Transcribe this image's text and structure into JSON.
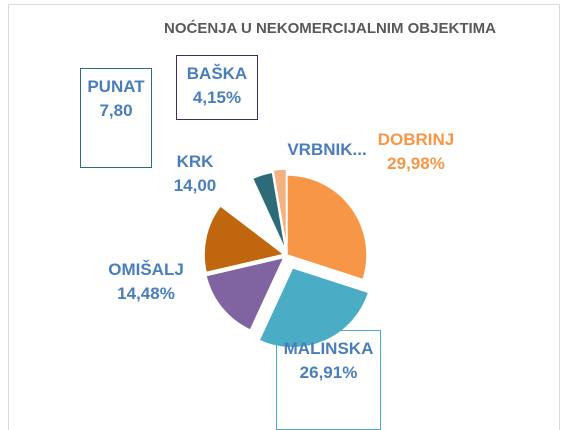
{
  "chart_data": {
    "type": "pie",
    "title": "NOĆENJA U NEKOMERCIJALNIM OBJEKTIMA",
    "categories": [
      "DOBRINJ",
      "MALINSKA",
      "OMIŠALJ",
      "KRK",
      "PUNAT",
      "BAŠKA",
      "VRBNIK..."
    ],
    "values": [
      29.98,
      26.91,
      14.48,
      14.0,
      7.8,
      4.15,
      2.68
    ],
    "value_labels": [
      "29,98%",
      "26,91%",
      "14,48%",
      "14,00",
      "7,80",
      "4,15%",
      null
    ],
    "colors": [
      "#f79646",
      "#4bacc6",
      "#8064a2",
      "#c0660e",
      "#ffffff",
      "#2e6b78",
      "#f4b183"
    ]
  }
}
